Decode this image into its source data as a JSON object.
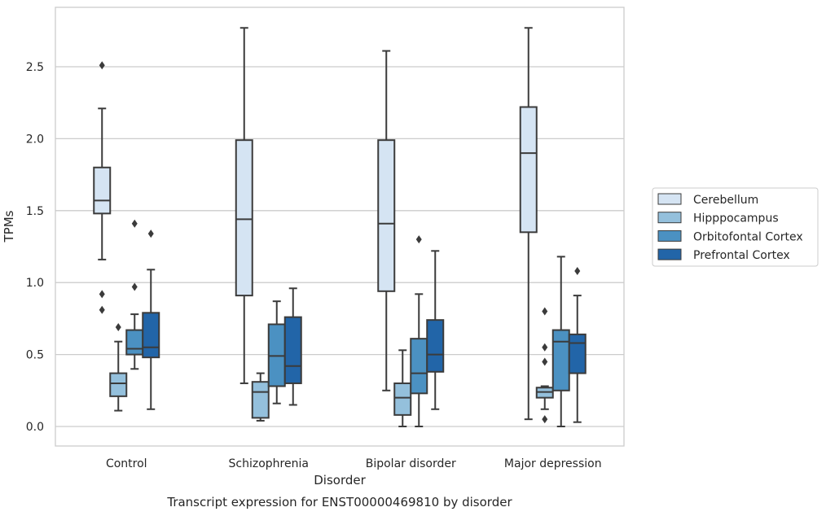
{
  "chart_data": {
    "type": "boxplot",
    "xlabel": "Disorder",
    "ylabel": "TPMs",
    "caption": "Transcript expression for ENST00000469810 by disorder",
    "ylim": [
      -0.13,
      2.92
    ],
    "yticks": [
      "0.0",
      "0.5",
      "1.0",
      "1.5",
      "2.0",
      "2.5"
    ],
    "ytick_values": [
      0,
      0.5,
      1.0,
      1.5,
      2.0,
      2.5
    ],
    "grid": "horizontal",
    "legend_position": "right",
    "categories": [
      "Control",
      "Schizophrenia",
      "Bipolar disorder",
      "Major depression"
    ],
    "series": [
      {
        "name": "Cerebellum",
        "color": "#d5e4f3",
        "boxes": [
          {
            "whislo": 1.16,
            "q1": 1.48,
            "med": 1.57,
            "q3": 1.8,
            "whishi": 2.21,
            "fliers": [
              0.81,
              0.92,
              2.51
            ]
          },
          {
            "whislo": 0.3,
            "q1": 0.91,
            "med": 1.44,
            "q3": 1.99,
            "whishi": 2.77,
            "fliers": []
          },
          {
            "whislo": 0.25,
            "q1": 0.94,
            "med": 1.41,
            "q3": 1.99,
            "whishi": 2.61,
            "fliers": []
          },
          {
            "whislo": 0.05,
            "q1": 1.35,
            "med": 1.9,
            "q3": 2.22,
            "whishi": 2.77,
            "fliers": []
          }
        ]
      },
      {
        "name": "Hipppocampus",
        "color": "#94c0dc",
        "boxes": [
          {
            "whislo": 0.11,
            "q1": 0.21,
            "med": 0.3,
            "q3": 0.37,
            "whishi": 0.59,
            "fliers": [
              0.69
            ]
          },
          {
            "whislo": 0.04,
            "q1": 0.06,
            "med": 0.24,
            "q3": 0.31,
            "whishi": 0.37,
            "fliers": []
          },
          {
            "whislo": 0.0,
            "q1": 0.08,
            "med": 0.2,
            "q3": 0.3,
            "whishi": 0.53,
            "fliers": []
          },
          {
            "whislo": 0.12,
            "q1": 0.2,
            "med": 0.24,
            "q3": 0.27,
            "whishi": 0.28,
            "fliers": [
              0.05,
              0.45,
              0.55,
              0.8
            ]
          }
        ]
      },
      {
        "name": "Orbitofontal Cortex",
        "color": "#4b91c2",
        "boxes": [
          {
            "whislo": 0.4,
            "q1": 0.5,
            "med": 0.54,
            "q3": 0.67,
            "whishi": 0.78,
            "fliers": [
              0.97,
              1.41
            ]
          },
          {
            "whislo": 0.16,
            "q1": 0.28,
            "med": 0.49,
            "q3": 0.71,
            "whishi": 0.87,
            "fliers": []
          },
          {
            "whislo": 0.0,
            "q1": 0.23,
            "med": 0.37,
            "q3": 0.61,
            "whishi": 0.92,
            "fliers": [
              1.3
            ]
          },
          {
            "whislo": 0.0,
            "q1": 0.25,
            "med": 0.59,
            "q3": 0.67,
            "whishi": 1.18,
            "fliers": []
          }
        ]
      },
      {
        "name": "Prefrontal Cortex",
        "color": "#2265a8",
        "boxes": [
          {
            "whislo": 0.12,
            "q1": 0.48,
            "med": 0.55,
            "q3": 0.79,
            "whishi": 1.09,
            "fliers": [
              1.34
            ]
          },
          {
            "whislo": 0.15,
            "q1": 0.3,
            "med": 0.42,
            "q3": 0.76,
            "whishi": 0.96,
            "fliers": []
          },
          {
            "whislo": 0.12,
            "q1": 0.38,
            "med": 0.5,
            "q3": 0.74,
            "whishi": 1.22,
            "fliers": []
          },
          {
            "whislo": 0.03,
            "q1": 0.37,
            "med": 0.58,
            "q3": 0.64,
            "whishi": 0.91,
            "fliers": [
              1.08
            ]
          }
        ]
      }
    ]
  }
}
